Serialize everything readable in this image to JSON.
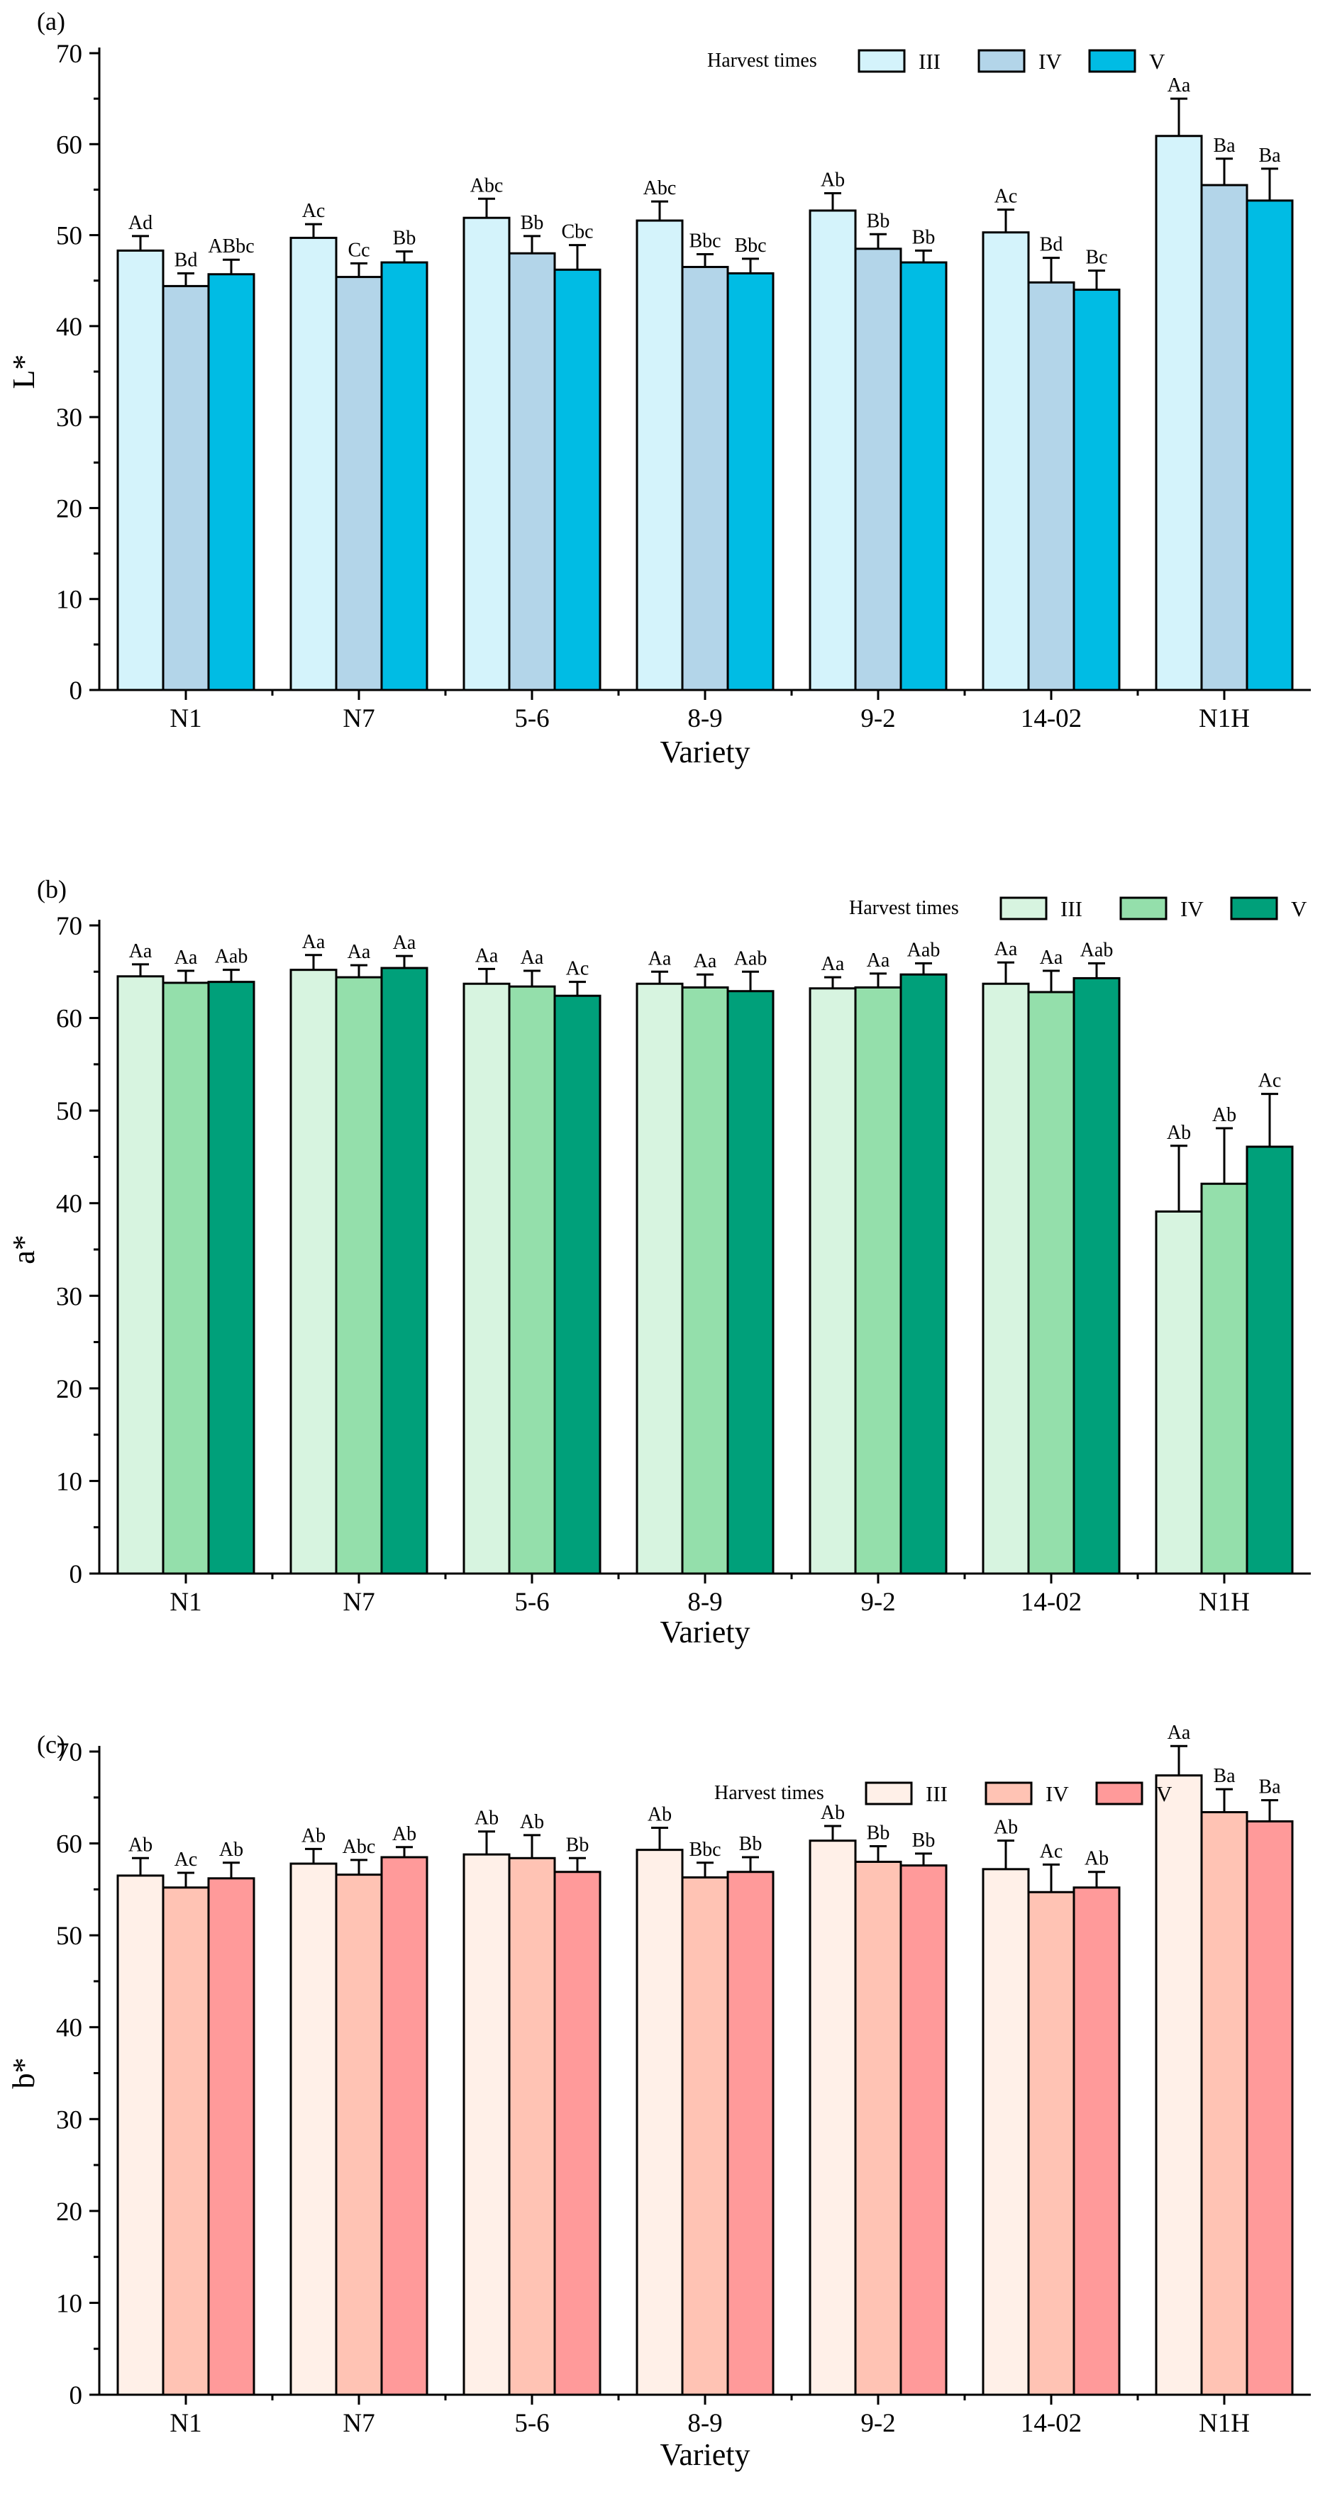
{
  "chart_data": [
    {
      "type": "bar",
      "panel_label": "(a)",
      "title": "",
      "xlabel": "Variety",
      "ylabel": "L*",
      "ylim": [
        0,
        70
      ],
      "yticks": [
        0,
        10,
        20,
        30,
        40,
        50,
        60,
        70
      ],
      "categories": [
        "N1",
        "N7",
        "5-6",
        "8-9",
        "9-2",
        "14-02",
        "N1H"
      ],
      "legend_title": "Harvest times",
      "legend_position": "top-right",
      "series": [
        {
          "name": "III",
          "color": "#d4f3fb",
          "values": [
            48.3,
            49.7,
            51.9,
            51.6,
            52.7,
            50.3,
            60.9
          ],
          "errors": [
            1.6,
            1.5,
            2.1,
            2.1,
            1.9,
            2.5,
            4.1
          ],
          "labels": [
            "Ad",
            "Ac",
            "Abc",
            "Abc",
            "Ab",
            "Ac",
            "Aa"
          ]
        },
        {
          "name": "IV",
          "color": "#b3d5e9",
          "values": [
            44.4,
            45.4,
            48.0,
            46.5,
            48.5,
            44.8,
            55.5
          ],
          "errors": [
            1.4,
            1.5,
            1.9,
            1.4,
            1.6,
            2.7,
            2.9
          ],
          "labels": [
            "Bd",
            "Cc",
            "Bb",
            "Bbc",
            "Bb",
            "Bd",
            "Ba"
          ]
        },
        {
          "name": "V",
          "color": "#00bce4",
          "values": [
            45.7,
            47.0,
            46.2,
            45.8,
            47.0,
            44.0,
            53.8
          ],
          "errors": [
            1.6,
            1.2,
            2.7,
            1.6,
            1.3,
            2.1,
            3.5
          ],
          "labels": [
            "ABbc",
            "Bb",
            "Cbc",
            "Bbc",
            "Bb",
            "Bc",
            "Ba"
          ]
        }
      ]
    },
    {
      "type": "bar",
      "panel_label": "(b)",
      "title": "",
      "xlabel": "Variety",
      "ylabel": "a*",
      "ylim": [
        0,
        70
      ],
      "yticks": [
        0,
        10,
        20,
        30,
        40,
        50,
        60,
        70
      ],
      "categories": [
        "N1",
        "N7",
        "5-6",
        "8-9",
        "9-2",
        "14-02",
        "N1H"
      ],
      "legend_title": "Harvest times",
      "legend_position": "top-right",
      "series": [
        {
          "name": "III",
          "color": "#d7f4e0",
          "values": [
            64.5,
            65.2,
            63.7,
            63.7,
            63.2,
            63.7,
            39.1
          ],
          "errors": [
            1.3,
            1.6,
            1.6,
            1.3,
            1.2,
            2.3,
            7.1
          ],
          "labels": [
            "Aa",
            "Aa",
            "Aa",
            "Aa",
            "Aa",
            "Aa",
            "Ab"
          ]
        },
        {
          "name": "IV",
          "color": "#94dfab",
          "values": [
            63.8,
            64.4,
            63.4,
            63.3,
            63.3,
            62.8,
            42.1
          ],
          "errors": [
            1.3,
            1.3,
            1.7,
            1.4,
            1.5,
            2.3,
            6.0
          ],
          "labels": [
            "Aa",
            "Aa",
            "Aa",
            "Aa",
            "Aa",
            "Aa",
            "Ab"
          ]
        },
        {
          "name": "V",
          "color": "#00a07a",
          "values": [
            63.9,
            65.4,
            62.4,
            62.9,
            64.7,
            64.3,
            46.1
          ],
          "errors": [
            1.3,
            1.3,
            1.5,
            2.1,
            1.2,
            1.6,
            5.7
          ],
          "labels": [
            "Aab",
            "Aa",
            "Ac",
            "Aab",
            "Aab",
            "Aab",
            "Ac"
          ]
        }
      ]
    },
    {
      "type": "bar",
      "panel_label": "(c)",
      "title": "",
      "xlabel": "Variety",
      "ylabel": "b*",
      "ylim": [
        0,
        70
      ],
      "yticks": [
        0,
        10,
        20,
        30,
        40,
        50,
        60,
        70
      ],
      "categories": [
        "N1",
        "N7",
        "5-6",
        "8-9",
        "9-2",
        "14-02",
        "N1H"
      ],
      "legend_title": "Harvest times",
      "legend_position": "top-right",
      "series": [
        {
          "name": "III",
          "color": "#fff0e8",
          "values": [
            56.5,
            57.8,
            58.8,
            59.3,
            60.3,
            57.2,
            67.4
          ],
          "errors": [
            1.9,
            1.6,
            2.5,
            2.4,
            1.6,
            3.1,
            3.2
          ],
          "labels": [
            "Ab",
            "Ab",
            "Ab",
            "Ab",
            "Ab",
            "Ab",
            "Aa"
          ]
        },
        {
          "name": "IV",
          "color": "#ffc3b4",
          "values": [
            55.2,
            56.6,
            58.4,
            56.3,
            58.0,
            54.7,
            63.4
          ],
          "errors": [
            1.6,
            1.6,
            2.5,
            1.6,
            1.7,
            3.0,
            2.5
          ],
          "labels": [
            "Ac",
            "Abc",
            "Ab",
            "Bbc",
            "Bb",
            "Ac",
            "Ba"
          ]
        },
        {
          "name": "V",
          "color": "#ff9a9a",
          "values": [
            56.2,
            58.5,
            56.9,
            56.9,
            57.6,
            55.2,
            62.4
          ],
          "errors": [
            1.7,
            1.1,
            1.5,
            1.6,
            1.3,
            1.7,
            2.3
          ],
          "labels": [
            "Ab",
            "Ab",
            "Bb",
            "Bb",
            "Bb",
            "Ab",
            "Ba"
          ]
        }
      ]
    }
  ]
}
